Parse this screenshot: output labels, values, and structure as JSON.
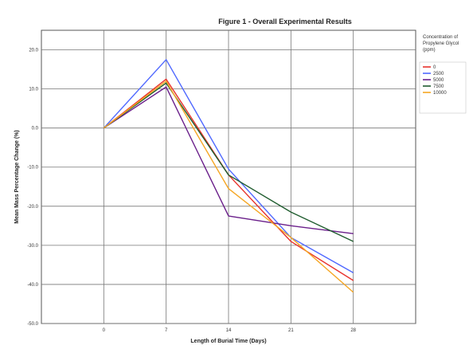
{
  "chart_data": {
    "type": "line",
    "title": "Figure 1 - Overall Experimental Results",
    "xlabel": "Length of Burial Time (Days)",
    "ylabel": "Mean Mass Percentage Change (%)",
    "x": [
      0,
      7,
      14,
      21,
      28
    ],
    "xlim": [
      -7,
      35
    ],
    "ylim": [
      -50,
      25
    ],
    "yticks": [
      20,
      10,
      0,
      -10,
      -20,
      -30,
      -40,
      -50
    ],
    "ytick_labels": [
      "20.0",
      "10.0",
      "0.0",
      "-10.0",
      "-20.0",
      "-30.0",
      "-40.0",
      "-50.0"
    ],
    "grid": true,
    "legend": {
      "position": "top-right",
      "title": "Concentration of Propylene Glycol (ppm)"
    },
    "series": [
      {
        "name": "0",
        "color": "#e8322c",
        "values": [
          0,
          12.5,
          -12.0,
          -29.0,
          -39.0
        ]
      },
      {
        "name": "2500",
        "color": "#4f68ff",
        "values": [
          0,
          17.5,
          -10.5,
          -28.0,
          -37.0
        ]
      },
      {
        "name": "5000",
        "color": "#6a1f8a",
        "values": [
          0,
          10.5,
          -22.5,
          -25.0,
          -27.0
        ]
      },
      {
        "name": "7500",
        "color": "#1f5c2e",
        "values": [
          0,
          11.5,
          -12.0,
          -21.5,
          -29.0
        ]
      },
      {
        "name": "10000",
        "color": "#f5a623",
        "values": [
          0,
          12.0,
          -15.5,
          -28.0,
          -42.0
        ]
      }
    ]
  }
}
